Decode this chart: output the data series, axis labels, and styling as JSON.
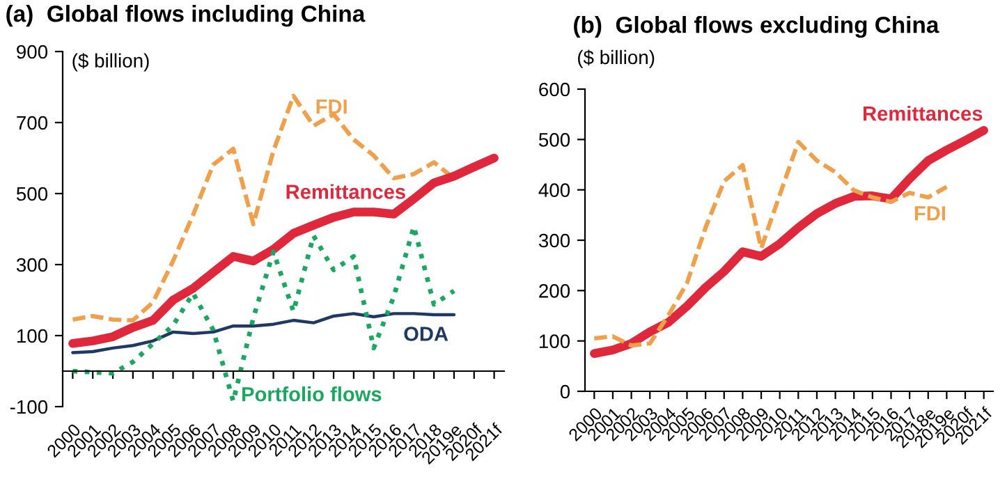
{
  "chart_data": [
    {
      "type": "line",
      "title": "(a)  Global flows including China",
      "ylabel": "($ billion)",
      "categories": [
        "2000",
        "2001",
        "2002",
        "2003",
        "2004",
        "2005",
        "2006",
        "2007",
        "2008",
        "2009",
        "2010",
        "2011",
        "2012",
        "2013",
        "2014",
        "2015",
        "2016",
        "2017",
        "2018",
        "2019e",
        "2020f",
        "2021f"
      ],
      "ylim": [
        -100,
        900
      ],
      "yticks": [
        -100,
        100,
        300,
        500,
        700,
        900
      ],
      "grid": false,
      "legend": false,
      "series": [
        {
          "name": "FDI",
          "color": "#f0a04b",
          "line_style": "dashed",
          "values": [
            145,
            155,
            145,
            143,
            194,
            310,
            440,
            581,
            626,
            414,
            620,
            775,
            691,
            723,
            652,
            607,
            543,
            555,
            588,
            543,
            null,
            null
          ]
        },
        {
          "name": "Remittances",
          "color": "#e0283c",
          "line_style": "solid",
          "values": [
            78,
            85,
            97,
            123,
            143,
            200,
            233,
            278,
            323,
            310,
            343,
            388,
            411,
            433,
            448,
            448,
            442,
            485,
            530,
            549,
            575,
            600
          ]
        },
        {
          "name": "ODA",
          "color": "#1f3864",
          "line_style": "solid",
          "values": [
            52,
            55,
            65,
            72,
            85,
            110,
            106,
            110,
            127,
            127,
            132,
            143,
            136,
            155,
            162,
            153,
            162,
            162,
            159,
            159,
            null,
            null
          ]
        },
        {
          "name": "Portfolio flows",
          "color": "#1aa860",
          "line_style": "dotted",
          "values": [
            0,
            -3,
            -6,
            26,
            77,
            129,
            219,
            116,
            -85,
            150,
            336,
            168,
            381,
            285,
            323,
            65,
            210,
            407,
            188,
            226,
            null,
            null
          ]
        }
      ]
    },
    {
      "type": "line",
      "title": "(b)  Global flows excluding China",
      "ylabel": "($ billion)",
      "categories": [
        "2000",
        "2001",
        "2002",
        "2003",
        "2004",
        "2005",
        "2006",
        "2007",
        "2008",
        "2009",
        "2010",
        "2011",
        "2012",
        "2013",
        "2014",
        "2015",
        "2016",
        "2017",
        "2018e",
        "2019e",
        "2020f",
        "2021f"
      ],
      "ylim": [
        0,
        600
      ],
      "yticks": [
        0,
        100,
        200,
        300,
        400,
        500,
        600
      ],
      "grid": false,
      "legend": false,
      "series": [
        {
          "name": "Remittances",
          "color": "#e0283c",
          "line_style": "solid",
          "values": [
            75,
            82,
            95,
            118,
            137,
            169,
            206,
            238,
            277,
            268,
            293,
            325,
            353,
            373,
            387,
            388,
            382,
            422,
            458,
            479,
            498,
            518
          ]
        },
        {
          "name": "FDI",
          "color": "#f0a04b",
          "line_style": "dashed",
          "values": [
            105,
            109,
            91,
            95,
            151,
            215,
            325,
            417,
            449,
            284,
            390,
            495,
            458,
            435,
            399,
            385,
            376,
            394,
            385,
            406,
            null,
            null
          ]
        }
      ]
    }
  ]
}
